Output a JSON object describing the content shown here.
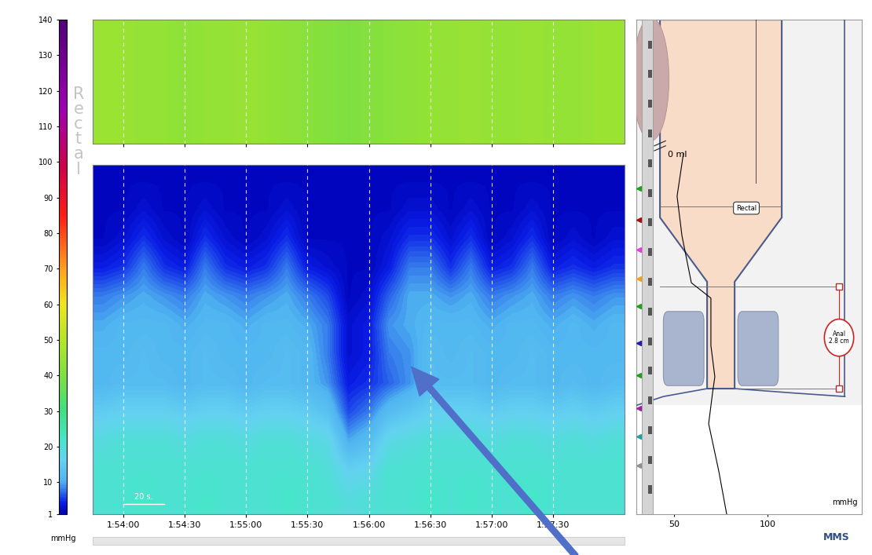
{
  "chart_data": [
    {
      "type": "heatmap",
      "x": [
        6830,
        6840,
        6850,
        6860,
        6870,
        6880,
        6890,
        6900,
        6910,
        6920,
        6930,
        6940,
        6950,
        6960,
        6970,
        6980,
        6990,
        7000,
        7010,
        7020,
        7030,
        7040,
        7050,
        7060,
        7070,
        7080
      ],
      "cells": [
        [
          2,
          2,
          2,
          2,
          2,
          2,
          2,
          2,
          2,
          2,
          2,
          2,
          2,
          2,
          2,
          2,
          2,
          2,
          2,
          2,
          2,
          2,
          2,
          2,
          2,
          2
        ],
        [
          2,
          2,
          3,
          2,
          2,
          3,
          2,
          2,
          2,
          3,
          2,
          2,
          2,
          2,
          2,
          3,
          3,
          2,
          3,
          2,
          2,
          3,
          2,
          2,
          2,
          2
        ],
        [
          2,
          3,
          5,
          3,
          2,
          5,
          3,
          2,
          3,
          5,
          2,
          2,
          2,
          2,
          3,
          5,
          5,
          3,
          5,
          2,
          3,
          5,
          2,
          3,
          2,
          3
        ],
        [
          4,
          5,
          8,
          5,
          4,
          8,
          5,
          4,
          5,
          8,
          4,
          3,
          2,
          2,
          4,
          8,
          8,
          5,
          8,
          4,
          5,
          8,
          4,
          5,
          4,
          5
        ],
        [
          8,
          9,
          10,
          9,
          8,
          10,
          9,
          8,
          9,
          10,
          8,
          6,
          2,
          3,
          7,
          10,
          10,
          9,
          10,
          8,
          9,
          10,
          8,
          9,
          8,
          9
        ],
        [
          10,
          11,
          11,
          11,
          10,
          11,
          11,
          10,
          11,
          11,
          10,
          8,
          3,
          4,
          9,
          10,
          11,
          11,
          11,
          10,
          11,
          11,
          10,
          11,
          10,
          11
        ],
        [
          11,
          11,
          12,
          11,
          11,
          12,
          11,
          11,
          11,
          12,
          11,
          8,
          3,
          4,
          8,
          9,
          12,
          11,
          12,
          11,
          11,
          12,
          11,
          11,
          11,
          11
        ],
        [
          11,
          12,
          12,
          12,
          11,
          12,
          12,
          11,
          12,
          12,
          11,
          9,
          4,
          5,
          7,
          9,
          12,
          12,
          12,
          11,
          12,
          12,
          11,
          12,
          11,
          12
        ],
        [
          15,
          16,
          16,
          16,
          15,
          16,
          16,
          15,
          16,
          16,
          15,
          13,
          6,
          8,
          12,
          14,
          16,
          16,
          16,
          15,
          16,
          16,
          15,
          16,
          15,
          16
        ],
        [
          19,
          20,
          20,
          20,
          19,
          20,
          20,
          19,
          20,
          20,
          19,
          18,
          10,
          12,
          18,
          19,
          20,
          20,
          20,
          19,
          20,
          20,
          19,
          20,
          19,
          20
        ],
        [
          21,
          21,
          21,
          21,
          21,
          21,
          21,
          21,
          21,
          21,
          21,
          20,
          16,
          17,
          21,
          21,
          21,
          21,
          21,
          21,
          21,
          21,
          21,
          21,
          21,
          21
        ],
        [
          21,
          21,
          22,
          21,
          21,
          22,
          21,
          21,
          21,
          22,
          21,
          21,
          19,
          20,
          21,
          21,
          22,
          21,
          22,
          21,
          21,
          22,
          21,
          21,
          21,
          21
        ]
      ],
      "xlim": [
        6825,
        7085
      ],
      "xticks": [
        {
          "value": 6840,
          "label": "1:54:00"
        },
        {
          "value": 6870,
          "label": "1:54:30"
        },
        {
          "value": 6900,
          "label": "1:55:00"
        },
        {
          "value": 6930,
          "label": "1:55:30"
        },
        {
          "value": 6960,
          "label": "1:56:00"
        },
        {
          "value": 6990,
          "label": "1:56:30"
        },
        {
          "value": 7020,
          "label": "1:57:00"
        },
        {
          "value": 7050,
          "label": "1:57:30"
        }
      ],
      "grid": true,
      "tick_labels": "x",
      "scale_bar": {
        "label": "20 s.",
        "length": 20
      },
      "colorbar": {
        "label": "Rectal",
        "unit": "mmHg",
        "range": [
          1,
          140
        ],
        "ticks": [
          1,
          10,
          20,
          30,
          40,
          50,
          60,
          70,
          80,
          90,
          100,
          110,
          120,
          130,
          140
        ]
      }
    },
    {
      "type": "heatmap",
      "x": [
        6830,
        6840,
        6850,
        6860,
        6870,
        6880,
        6890,
        6900,
        6910,
        6920,
        6930,
        6940,
        6950,
        6960,
        6970,
        6980,
        6990,
        7000,
        7010,
        7020,
        7030,
        7040,
        7050,
        7060,
        7070,
        7080
      ],
      "cells": [
        [
          45,
          45,
          44,
          44,
          43,
          44,
          44,
          45,
          44,
          43,
          42,
          41,
          40,
          41,
          42,
          43,
          44,
          44,
          45,
          44,
          44,
          45,
          44,
          44,
          45,
          45
        ]
      ],
      "xlim": [
        6825,
        7085
      ],
      "xticks": [
        {
          "value": 6840,
          "label": "1:54:00"
        },
        {
          "value": 6870,
          "label": "1:54:30"
        },
        {
          "value": 6900,
          "label": "1:55:00"
        },
        {
          "value": 6930,
          "label": "1:55:30"
        },
        {
          "value": 6960,
          "label": "1:56:00"
        },
        {
          "value": 6990,
          "label": "1:56:30"
        },
        {
          "value": 7020,
          "label": "1:57:00"
        },
        {
          "value": 7050,
          "label": "1:57:30"
        }
      ],
      "grid": true,
      "tick_labels": false
    },
    {
      "type": "line",
      "values": [
        55.1,
        51.7,
        54.3,
        59.3,
        69.7,
        69.7,
        71.8,
        70.6,
        68.5,
        73.9,
        78.1
      ],
      "y": [
        73.0,
        64.3,
        56.3,
        46.8,
        43.7,
        34.1,
        27.8,
        24.6,
        18.3,
        8.7,
        0.0
      ],
      "xlim": [
        30,
        150
      ],
      "xticks": [
        50,
        100
      ],
      "ylim": [
        0,
        100
      ],
      "tick_labels": "x",
      "color": "#000000",
      "unit": "mmHg",
      "volume_label": "0 ml",
      "region_label": "Rectal",
      "segment_label": "Anal",
      "segment_length": "2.8 cm",
      "logo": "MMS"
    }
  ]
}
